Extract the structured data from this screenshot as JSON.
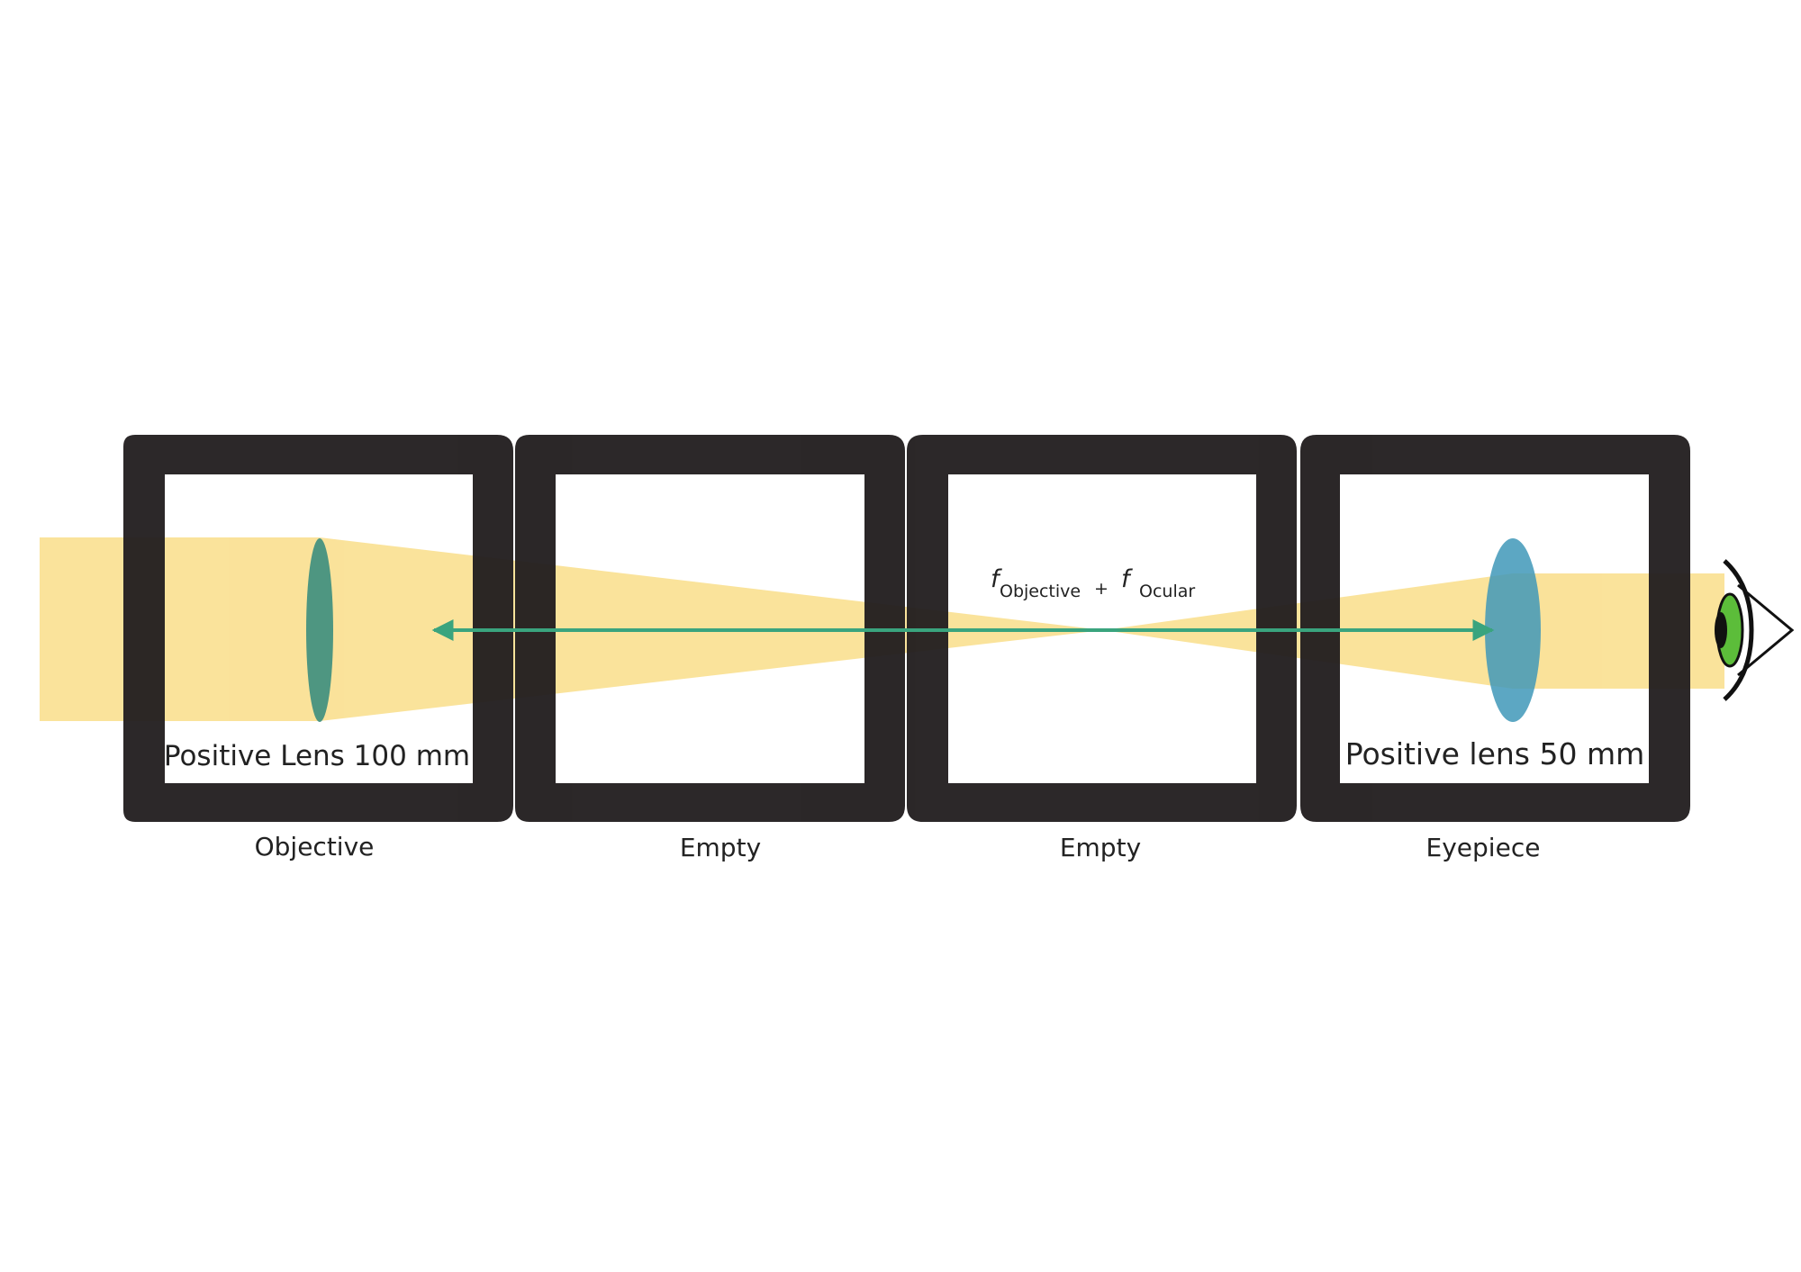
{
  "colors": {
    "beam": "#f9dc82",
    "frame": "#231f20",
    "objective_lens": "#3f8f7f",
    "eyepiece_lens": "#3f98b8",
    "axis_arrow": "#3aa47e",
    "eye_iris": "#5cbd3a",
    "eye_pupil": "#111111"
  },
  "cells": [
    {
      "caption": "Objective",
      "lens_label": "Positive Lens 100 mm"
    },
    {
      "caption": "Empty"
    },
    {
      "caption": "Empty"
    },
    {
      "caption": "Eyepiece",
      "lens_label": "Positive lens 50 mm"
    }
  ],
  "formula": {
    "f1": "f",
    "sub1": "Objective",
    "plus": "+",
    "f2": "f",
    "sub2": "Ocular"
  },
  "icons": {
    "lens_objective": "convex-lens-icon",
    "lens_eyepiece": "convex-lens-icon",
    "eye": "eye-icon"
  }
}
